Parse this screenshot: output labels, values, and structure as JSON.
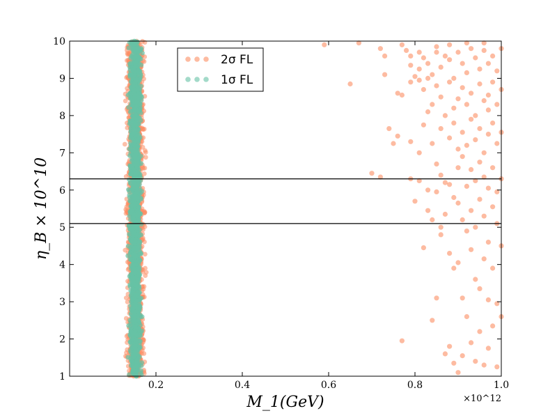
{
  "chart_data": {
    "type": "scatter",
    "title": "",
    "xlabel": "M_1(GeV)",
    "ylabel": "η_B × 10^10",
    "x_offset_label": "×10^12",
    "xlim": [
      0.0,
      1.0
    ],
    "ylim": [
      1,
      10
    ],
    "x_ticks": [
      "0.2",
      "0.4",
      "0.6",
      "0.8",
      "1.0"
    ],
    "y_ticks": [
      "1",
      "2",
      "3",
      "4",
      "5",
      "6",
      "7",
      "8",
      "9",
      "10"
    ],
    "hlines": [
      5.1,
      6.3
    ],
    "grid": false,
    "legend_position": "top-center",
    "series": [
      {
        "name": "2σ FL",
        "color": "#fc8d62",
        "band": {
          "x_center": 0.153,
          "x_halfwidth": 0.027,
          "y_range": [
            1,
            10
          ],
          "density": "dense"
        },
        "points": [
          [
            0.59,
            9.9
          ],
          [
            0.65,
            8.85
          ],
          [
            0.67,
            9.95
          ],
          [
            0.7,
            6.45
          ],
          [
            0.72,
            6.35
          ],
          [
            0.72,
            9.8
          ],
          [
            0.73,
            9.6
          ],
          [
            0.73,
            9.1
          ],
          [
            0.74,
            7.65
          ],
          [
            0.75,
            7.25
          ],
          [
            0.76,
            7.45
          ],
          [
            0.76,
            8.6
          ],
          [
            0.77,
            8.55
          ],
          [
            0.77,
            9.9
          ],
          [
            0.77,
            1.95
          ],
          [
            0.78,
            9.75
          ],
          [
            0.79,
            9.6
          ],
          [
            0.79,
            7.3
          ],
          [
            0.79,
            6.3
          ],
          [
            0.79,
            9.35
          ],
          [
            0.8,
            5.7
          ],
          [
            0.8,
            9.05
          ],
          [
            0.81,
            9.25
          ],
          [
            0.81,
            8.95
          ],
          [
            0.81,
            7.0
          ],
          [
            0.81,
            6.25
          ],
          [
            0.82,
            9.55
          ],
          [
            0.82,
            8.7
          ],
          [
            0.82,
            7.75
          ],
          [
            0.82,
            4.45
          ],
          [
            0.83,
            9.4
          ],
          [
            0.83,
            8.1
          ],
          [
            0.83,
            5.45
          ],
          [
            0.83,
            6.0
          ],
          [
            0.84,
            9.1
          ],
          [
            0.84,
            8.3
          ],
          [
            0.84,
            7.25
          ],
          [
            0.84,
            5.2
          ],
          [
            0.84,
            2.5
          ],
          [
            0.85,
            9.85
          ],
          [
            0.85,
            8.8
          ],
          [
            0.85,
            6.7
          ],
          [
            0.85,
            5.95
          ],
          [
            0.85,
            3.1
          ],
          [
            0.86,
            9.3
          ],
          [
            0.86,
            8.5
          ],
          [
            0.86,
            7.65
          ],
          [
            0.86,
            6.4
          ],
          [
            0.86,
            5.0
          ],
          [
            0.86,
            4.8
          ],
          [
            0.87,
            9.6
          ],
          [
            0.87,
            8.0
          ],
          [
            0.87,
            6.2
          ],
          [
            0.87,
            5.35
          ],
          [
            0.87,
            1.6
          ],
          [
            0.88,
            9.5
          ],
          [
            0.88,
            8.9
          ],
          [
            0.88,
            7.4
          ],
          [
            0.88,
            6.15
          ],
          [
            0.88,
            4.3
          ],
          [
            0.88,
            1.8
          ],
          [
            0.89,
            9.0
          ],
          [
            0.89,
            8.2
          ],
          [
            0.89,
            7.8
          ],
          [
            0.89,
            5.8
          ],
          [
            0.89,
            3.9
          ],
          [
            0.89,
            1.35
          ],
          [
            0.9,
            9.7
          ],
          [
            0.9,
            8.45
          ],
          [
            0.9,
            7.1
          ],
          [
            0.9,
            6.6
          ],
          [
            0.9,
            5.65
          ],
          [
            0.9,
            4.05
          ],
          [
            0.9,
            1.1
          ],
          [
            0.91,
            9.4
          ],
          [
            0.91,
            8.75
          ],
          [
            0.91,
            7.55
          ],
          [
            0.91,
            6.9
          ],
          [
            0.91,
            5.2
          ],
          [
            0.91,
            3.1
          ],
          [
            0.91,
            1.55
          ],
          [
            0.92,
            9.15
          ],
          [
            0.92,
            8.3
          ],
          [
            0.92,
            7.2
          ],
          [
            0.92,
            6.1
          ],
          [
            0.92,
            4.9
          ],
          [
            0.92,
            2.6
          ],
          [
            0.93,
            9.8
          ],
          [
            0.93,
            8.6
          ],
          [
            0.93,
            7.9
          ],
          [
            0.93,
            6.55
          ],
          [
            0.93,
            5.45
          ],
          [
            0.93,
            4.4
          ],
          [
            0.93,
            1.9
          ],
          [
            0.94,
            9.55
          ],
          [
            0.94,
            8.0
          ],
          [
            0.94,
            7.35
          ],
          [
            0.94,
            6.25
          ],
          [
            0.94,
            5.0
          ],
          [
            0.94,
            3.6
          ],
          [
            0.94,
            1.4
          ],
          [
            0.95,
            9.25
          ],
          [
            0.95,
            8.85
          ],
          [
            0.95,
            7.65
          ],
          [
            0.95,
            6.75
          ],
          [
            0.95,
            5.75
          ],
          [
            0.95,
            3.35
          ],
          [
            0.95,
            2.2
          ],
          [
            0.96,
            9.75
          ],
          [
            0.96,
            8.4
          ],
          [
            0.96,
            7.0
          ],
          [
            0.96,
            6.35
          ],
          [
            0.96,
            5.3
          ],
          [
            0.96,
            4.15
          ],
          [
            0.96,
            1.3
          ],
          [
            0.97,
            9.4
          ],
          [
            0.97,
            8.15
          ],
          [
            0.97,
            7.5
          ],
          [
            0.97,
            6.05
          ],
          [
            0.97,
            4.6
          ],
          [
            0.97,
            3.05
          ],
          [
            0.97,
            1.75
          ],
          [
            0.98,
            9.6
          ],
          [
            0.98,
            8.9
          ],
          [
            0.98,
            7.8
          ],
          [
            0.98,
            6.6
          ],
          [
            0.98,
            5.55
          ],
          [
            0.98,
            3.9
          ],
          [
            0.98,
            2.35
          ],
          [
            0.99,
            9.2
          ],
          [
            0.99,
            8.3
          ],
          [
            0.99,
            7.25
          ],
          [
            0.99,
            5.95
          ],
          [
            0.99,
            5.1
          ],
          [
            0.99,
            2.95
          ],
          [
            0.99,
            1.25
          ],
          [
            1.0,
            9.8
          ],
          [
            1.0,
            8.7
          ],
          [
            1.0,
            7.55
          ],
          [
            1.0,
            6.3
          ],
          [
            1.0,
            4.5
          ],
          [
            1.0,
            2.6
          ],
          [
            0.96,
            9.95
          ],
          [
            0.92,
            9.95
          ],
          [
            0.88,
            9.9
          ],
          [
            0.85,
            9.7
          ],
          [
            0.83,
            9.0
          ],
          [
            0.81,
            9.7
          ],
          [
            0.79,
            8.9
          ],
          [
            0.97,
            8.55
          ]
        ]
      },
      {
        "name": "1σ FL",
        "color": "#66c2a5",
        "band": {
          "x_center": 0.152,
          "x_halfwidth": 0.018,
          "y_range": [
            1,
            10
          ],
          "density": "dense"
        },
        "points": []
      }
    ]
  }
}
